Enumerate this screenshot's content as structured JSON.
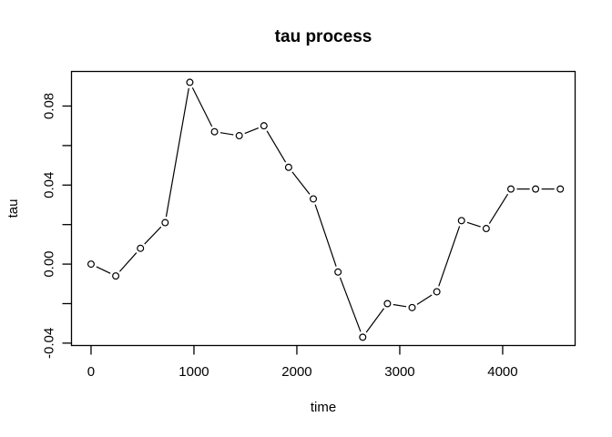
{
  "page": {
    "background": "#ffffff"
  },
  "chart_data": {
    "type": "line",
    "title": "tau process",
    "xlabel": "time",
    "ylabel": "tau",
    "grid": false,
    "legend": "none",
    "background": "#ffffff",
    "foreground": "#000000",
    "marker": "open-circle",
    "line_style": "segments-with-point-gaps",
    "xlim": [
      -190,
      4704
    ],
    "ylim": [
      -0.0412,
      0.0975
    ],
    "x_ticks": {
      "values": [
        0,
        1000,
        2000,
        3000,
        4000
      ],
      "labels": [
        "0",
        "1000",
        "2000",
        "3000",
        "4000"
      ]
    },
    "y_ticks": {
      "values": [
        -0.04,
        -0.02,
        0,
        0.02,
        0.04,
        0.06,
        0.08
      ],
      "labels": [
        "-0.04",
        "",
        "0.00",
        "",
        "0.04",
        "",
        "0.08"
      ]
    },
    "series": [
      {
        "name": "tau",
        "color": "#000000",
        "x": [
          0,
          240,
          480,
          720,
          960,
          1200,
          1440,
          1680,
          1920,
          2160,
          2400,
          2640,
          2880,
          3120,
          3360,
          3600,
          3840,
          4080,
          4320,
          4560
        ],
        "y": [
          0.0,
          -0.006,
          0.008,
          0.021,
          0.092,
          0.067,
          0.065,
          0.07,
          0.049,
          0.033,
          -0.004,
          -0.037,
          -0.02,
          -0.022,
          -0.014,
          0.022,
          0.018,
          0.038,
          0.038,
          0.038
        ]
      }
    ]
  }
}
